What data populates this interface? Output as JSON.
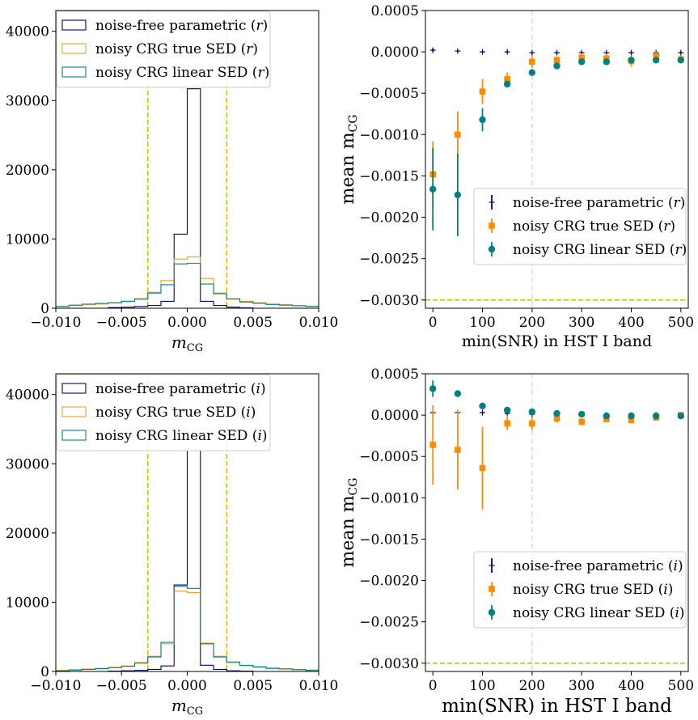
{
  "chart_data": [
    {
      "id": "r_hist",
      "type": "histogram",
      "xlabel_base": "m",
      "xlabel_sub": "CG",
      "xlim": [
        -0.01,
        0.01
      ],
      "ylim": [
        0,
        43000
      ],
      "xticks": [
        -0.01,
        -0.005,
        0.0,
        0.005,
        0.01
      ],
      "xtick_labels": [
        "−0.010",
        "−0.005",
        "0.000",
        "0.005",
        "0.010"
      ],
      "yticks": [
        0,
        10000,
        20000,
        30000,
        40000
      ],
      "ytick_labels": [
        "0",
        "10000",
        "20000",
        "30000",
        "40000"
      ],
      "vlines": [
        -0.003,
        0.003
      ],
      "vline_color": "#c8c800",
      "bin_edges": [
        -0.01,
        -0.009,
        -0.008,
        -0.007,
        -0.006,
        -0.005,
        -0.004,
        -0.003,
        -0.002,
        -0.001,
        0.0,
        0.001,
        0.002,
        0.003,
        0.004,
        0.005,
        0.006,
        0.007,
        0.008,
        0.009,
        0.01
      ],
      "series": [
        {
          "name": "noise-free parametric (r)",
          "color": "#000080",
          "values": [
            0,
            0,
            0,
            0,
            100,
            150,
            250,
            400,
            1000,
            10700,
            31700,
            1000,
            400,
            150,
            50,
            0,
            0,
            0,
            0,
            0
          ]
        },
        {
          "name": "noisy CRG true SED (r)",
          "color": "#f0a020",
          "values": [
            250,
            400,
            500,
            600,
            750,
            1000,
            1400,
            2300,
            4000,
            7100,
            7400,
            4300,
            2200,
            1300,
            1000,
            800,
            600,
            500,
            400,
            300
          ]
        },
        {
          "name": "noisy CRG linear SED (r)",
          "color": "#008080",
          "values": [
            250,
            450,
            600,
            700,
            800,
            1000,
            1300,
            2200,
            3400,
            6400,
            6500,
            3500,
            2100,
            1350,
            900,
            700,
            550,
            450,
            350,
            250
          ]
        }
      ],
      "legend": [
        {
          "label": "noise-free parametric ",
          "var": "r"
        },
        {
          "label": "noisy CRG true SED ",
          "var": "r"
        },
        {
          "label": "noisy CRG linear SED ",
          "var": "r"
        }
      ],
      "legend_position": "top-left"
    },
    {
      "id": "r_mean",
      "type": "errorbar",
      "xlabel": "min(SNR) in HST I band",
      "ylabel_base": "mean m",
      "ylabel_sub": "CG",
      "xlim": [
        -15,
        515
      ],
      "ylim": [
        -0.0031,
        0.0005
      ],
      "xticks": [
        0,
        100,
        200,
        300,
        400,
        500
      ],
      "xtick_labels": [
        "0",
        "100",
        "200",
        "300",
        "400",
        "500"
      ],
      "yticks": [
        0.0005,
        0.0,
        -0.0005,
        -0.001,
        -0.0015,
        -0.002,
        -0.0025,
        -0.003
      ],
      "ytick_labels": [
        "0.0005",
        "0.0000",
        "−0.0005",
        "−0.0010",
        "−0.0015",
        "−0.0020",
        "−0.0025",
        "−0.0030"
      ],
      "hline": -0.003,
      "hline_color": "#c8c800",
      "vline": 200,
      "vline_color": "#ffc0cb",
      "x": [
        0,
        50,
        100,
        150,
        200,
        250,
        300,
        350,
        400,
        450,
        500
      ],
      "series": [
        {
          "name": "noise-free parametric (r)",
          "color": "#000080",
          "marker": "plus",
          "values": [
            2e-05,
            1e-05,
            0.0,
            0.0,
            -1e-05,
            -1e-05,
            -1e-05,
            -1e-05,
            -1e-05,
            -1e-05,
            -1e-05
          ],
          "errors": [
            2e-05,
            1e-05,
            1e-05,
            1e-05,
            1e-05,
            1e-05,
            1e-05,
            1e-05,
            1e-05,
            1e-05,
            1e-05
          ]
        },
        {
          "name": "noisy CRG true SED (r)",
          "color": "#ff8c00",
          "marker": "square",
          "values": [
            -0.00148,
            -0.001,
            -0.00048,
            -0.00033,
            -0.00012,
            -0.0001,
            -7e-05,
            -8e-05,
            -0.00011,
            -5e-05,
            -9e-05
          ],
          "errors": [
            0.0004,
            0.00028,
            0.00015,
            8e-05,
            7e-05,
            5e-05,
            5e-05,
            5e-05,
            7e-05,
            5e-05,
            5e-05
          ]
        },
        {
          "name": "noisy CRG linear SED (r)",
          "color": "#008080",
          "marker": "circle",
          "values": [
            -0.00166,
            -0.00173,
            -0.00082,
            -0.00039,
            -0.00025,
            -0.00017,
            -0.00012,
            -0.00012,
            -0.0001,
            -0.0001,
            -0.0001
          ],
          "errors": [
            0.0005,
            0.0005,
            0.00014,
            4e-05,
            3e-05,
            3e-05,
            2e-05,
            2e-05,
            2e-05,
            2e-05,
            2e-05
          ]
        }
      ],
      "legend": [
        {
          "label": "noise-free parametric ",
          "var": "r"
        },
        {
          "label": "noisy CRG true SED ",
          "var": "r"
        },
        {
          "label": "noisy CRG linear SED ",
          "var": "r"
        }
      ],
      "legend_position": "lower-right"
    },
    {
      "id": "i_hist",
      "type": "histogram",
      "xlabel_base": "m",
      "xlabel_sub": "CG",
      "xlim": [
        -0.01,
        0.01
      ],
      "ylim": [
        0,
        43000
      ],
      "xticks": [
        -0.01,
        -0.005,
        0.0,
        0.005,
        0.01
      ],
      "xtick_labels": [
        "−0.010",
        "−0.005",
        "0.000",
        "0.005",
        "0.010"
      ],
      "yticks": [
        0,
        10000,
        20000,
        30000,
        40000
      ],
      "ytick_labels": [
        "0",
        "10000",
        "20000",
        "30000",
        "40000"
      ],
      "vlines": [
        -0.003,
        0.003
      ],
      "vline_color": "#c8c800",
      "bin_edges": [
        -0.01,
        -0.009,
        -0.008,
        -0.007,
        -0.006,
        -0.005,
        -0.004,
        -0.003,
        -0.002,
        -0.001,
        0.0,
        0.001,
        0.002,
        0.003,
        0.004,
        0.005,
        0.006,
        0.007,
        0.008,
        0.009,
        0.01
      ],
      "series": [
        {
          "name": "noise-free parametric (i)",
          "color": "#000080",
          "values": [
            0,
            0,
            0,
            0,
            50,
            100,
            150,
            300,
            800,
            12500,
            31900,
            900,
            300,
            100,
            50,
            0,
            0,
            0,
            0,
            0
          ]
        },
        {
          "name": "noisy CRG true SED (i)",
          "color": "#f0a020",
          "values": [
            150,
            250,
            350,
            450,
            600,
            800,
            1300,
            2200,
            4000,
            11600,
            11400,
            4100,
            2200,
            1400,
            900,
            700,
            500,
            400,
            300,
            200
          ]
        },
        {
          "name": "noisy CRG linear SED (i)",
          "color": "#008080",
          "values": [
            100,
            200,
            300,
            400,
            550,
            750,
            1200,
            2100,
            4200,
            12300,
            12000,
            4000,
            2100,
            1300,
            850,
            650,
            450,
            350,
            250,
            150
          ]
        }
      ],
      "legend": [
        {
          "label": "noise-free parametric ",
          "var": "i"
        },
        {
          "label": "noisy CRG true SED ",
          "var": "i"
        },
        {
          "label": "noisy CRG linear SED ",
          "var": "i"
        }
      ],
      "legend_position": "top-left"
    },
    {
      "id": "i_mean",
      "type": "errorbar",
      "xlabel": "min(SNR) in HST I band",
      "ylabel_base": "mean m",
      "ylabel_sub": "CG",
      "xlim": [
        -15,
        515
      ],
      "ylim": [
        -0.0031,
        0.0005
      ],
      "xticks": [
        0,
        100,
        200,
        300,
        400,
        500
      ],
      "xtick_labels": [
        "0",
        "100",
        "200",
        "300",
        "400",
        "500"
      ],
      "yticks": [
        0.0005,
        0.0,
        -0.0005,
        -0.001,
        -0.0015,
        -0.002,
        -0.0025,
        -0.003
      ],
      "ytick_labels": [
        "0.0005",
        "0.0000",
        "−0.0005",
        "−0.0010",
        "−0.0015",
        "−0.0020",
        "−0.0025",
        "−0.0030"
      ],
      "hline": -0.003,
      "hline_color": "#c8c800",
      "vline": 200,
      "vline_color": "#ffc0cb",
      "x": [
        0,
        50,
        100,
        150,
        200,
        250,
        300,
        350,
        400,
        450,
        500
      ],
      "series": [
        {
          "name": "noise-free parametric (i)",
          "color": "#000080",
          "marker": "plus",
          "values": [
            3e-05,
            3e-05,
            3e-05,
            2e-05,
            1e-05,
            1e-05,
            1e-05,
            0.0,
            0.0,
            0.0,
            0.0
          ],
          "errors": [
            1e-05,
            1e-05,
            1e-05,
            1e-05,
            1e-05,
            1e-05,
            1e-05,
            1e-05,
            1e-05,
            1e-05,
            1e-05
          ]
        },
        {
          "name": "noisy CRG true SED (i)",
          "color": "#ff8c00",
          "marker": "square",
          "values": [
            -0.00036,
            -0.00042,
            -0.00064,
            -0.0001,
            -0.0001,
            -4e-05,
            -8e-05,
            -5e-05,
            -6e-05,
            -3e-05,
            0.0
          ],
          "errors": [
            0.00048,
            0.00048,
            0.0005,
            8e-05,
            8e-05,
            5e-05,
            4e-05,
            4e-05,
            4e-05,
            3e-05,
            3e-05
          ]
        },
        {
          "name": "noisy CRG linear SED (i)",
          "color": "#008080",
          "marker": "circle",
          "values": [
            0.00032,
            0.00026,
            0.00011,
            6e-05,
            4e-05,
            2e-05,
            1e-05,
            -1e-05,
            -1e-05,
            -1e-05,
            -1e-05
          ],
          "errors": [
            0.0001,
            4e-05,
            2e-05,
            2e-05,
            2e-05,
            2e-05,
            2e-05,
            2e-05,
            2e-05,
            2e-05,
            2e-05
          ]
        }
      ],
      "legend": [
        {
          "label": "noise-free parametric ",
          "var": "i"
        },
        {
          "label": "noisy CRG true SED ",
          "var": "i"
        },
        {
          "label": "noisy CRG linear SED ",
          "var": "i"
        }
      ],
      "legend_position": "lower-right"
    }
  ]
}
